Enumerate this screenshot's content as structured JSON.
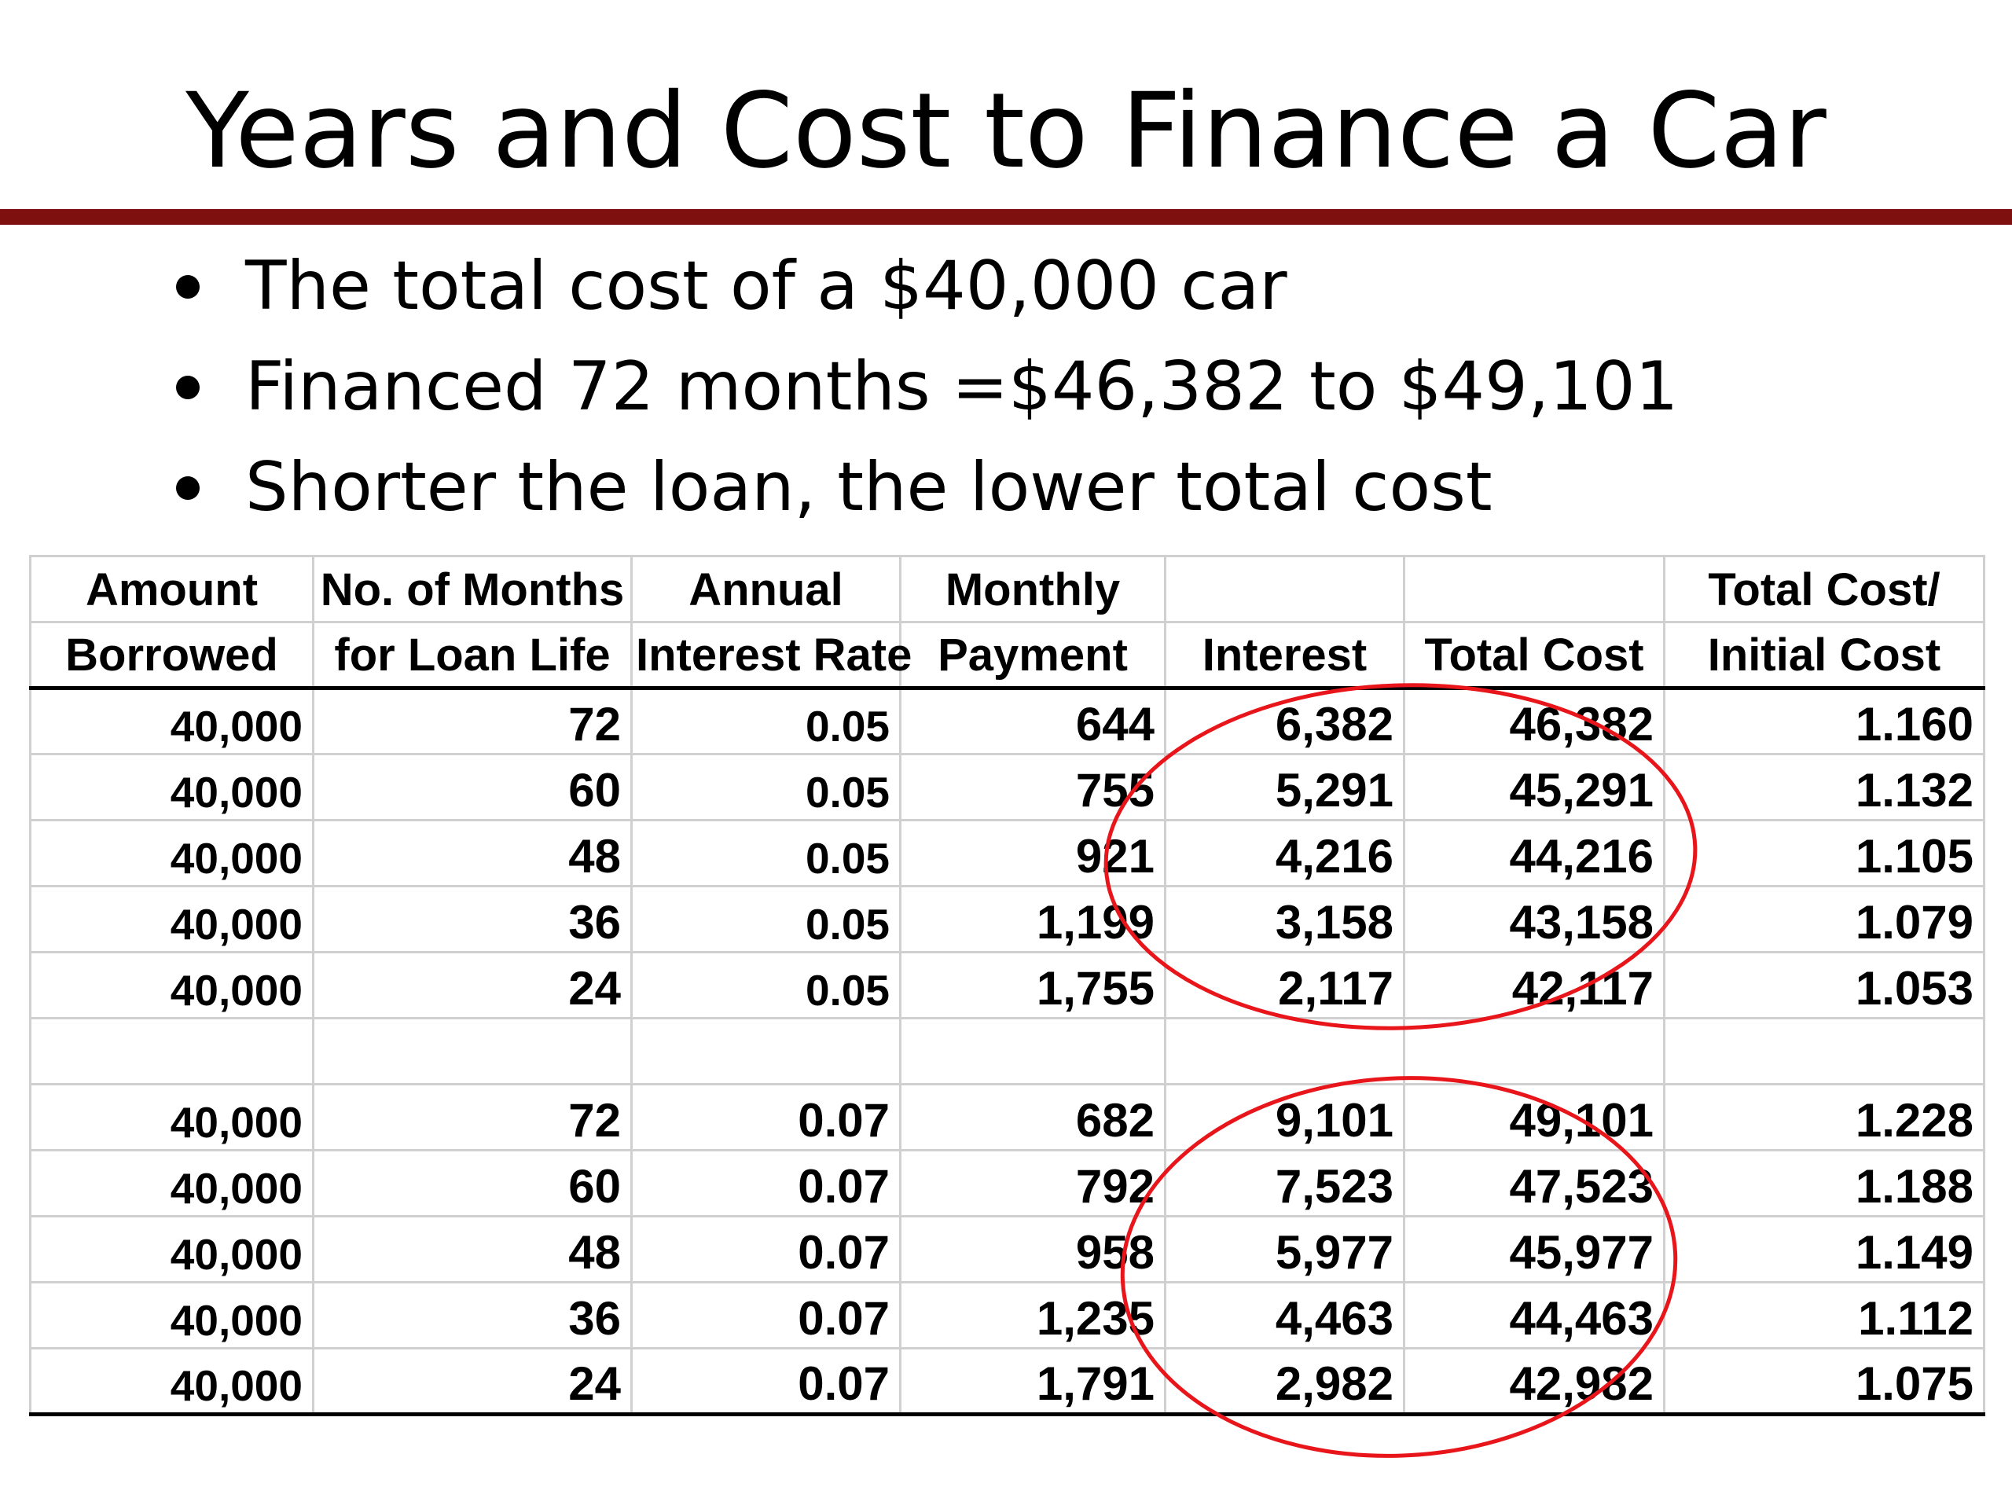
{
  "title": "Years and Cost to Finance a Car",
  "colors": {
    "title_rule": "#7f1010",
    "highlight_ellipse": "#e8151b"
  },
  "bullets": [
    "The total cost of a $40,000 car",
    "Financed 72 months =$46,382 to $49,101",
    "Shorter the loan, the lower total cost"
  ],
  "table": {
    "header_row1": [
      "Amount",
      "No. of Months",
      "Annual",
      "Monthly",
      "",
      "",
      "Total Cost/"
    ],
    "header_row2": [
      "Borrowed",
      "for Loan Life",
      "Interest Rate",
      "Payment",
      "Interest",
      "Total Cost",
      "Initial Cost"
    ],
    "rows": [
      [
        "40,000",
        "72",
        "0.05",
        "644",
        "6,382",
        "46,382",
        "1.160"
      ],
      [
        "40,000",
        "60",
        "0.05",
        "755",
        "5,291",
        "45,291",
        "1.132"
      ],
      [
        "40,000",
        "48",
        "0.05",
        "921",
        "4,216",
        "44,216",
        "1.105"
      ],
      [
        "40,000",
        "36",
        "0.05",
        "1,199",
        "3,158",
        "43,158",
        "1.079"
      ],
      [
        "40,000",
        "24",
        "0.05",
        "1,755",
        "2,117",
        "42,117",
        "1.053"
      ],
      [
        "",
        "",
        "",
        "",
        "",
        "",
        ""
      ],
      [
        "40,000",
        "72",
        "0.07",
        "682",
        "9,101",
        "49,101",
        "1.228"
      ],
      [
        "40,000",
        "60",
        "0.07",
        "792",
        "7,523",
        "47,523",
        "1.188"
      ],
      [
        "40,000",
        "48",
        "0.07",
        "958",
        "5,977",
        "45,977",
        "1.149"
      ],
      [
        "40,000",
        "36",
        "0.07",
        "1,235",
        "4,463",
        "44,463",
        "1.112"
      ],
      [
        "40,000",
        "24",
        "0.07",
        "1,791",
        "2,982",
        "42,982",
        "1.075"
      ]
    ]
  }
}
